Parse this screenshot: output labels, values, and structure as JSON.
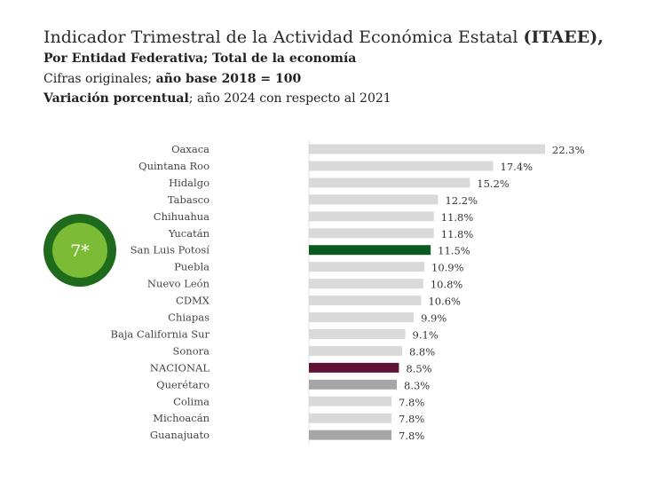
{
  "header": {
    "title": "Indicador Trimestral de la Actividad Económica Estatal",
    "title_bold": "(ITAEE),",
    "subtitle": "Por Entidad Federativa; Total de la economía",
    "note1_normal": "Cifras originales;",
    "note1_bold": "año base 2018 = 100",
    "note2_bold": "Variación porcentual",
    "note2_normal": "; año 2024 con respecto al 2021"
  },
  "badge": {
    "text": "7*",
    "outer_color": "#1e6b1e",
    "inner_color": "#7bbb35"
  },
  "chart_data": {
    "type": "bar",
    "orientation": "horizontal",
    "categories": [
      "Oaxaca",
      "Quintana Roo",
      "Hidalgo",
      "Tabasco",
      "Chihuahua",
      "Yucatán",
      "San Luis Potosí",
      "Puebla",
      "Nuevo León",
      "CDMX",
      "Chiapas",
      "Baja California Sur",
      "Sonora",
      "NACIONAL",
      "Querétaro",
      "Colima",
      "Michoacán",
      "Guanajuato"
    ],
    "values": [
      22.3,
      17.4,
      15.2,
      12.2,
      11.8,
      11.8,
      11.5,
      10.9,
      10.8,
      10.6,
      9.9,
      9.1,
      8.8,
      8.5,
      8.3,
      7.8,
      7.8,
      7.8
    ],
    "labels": [
      "22.3%",
      "17.4%",
      "15.2%",
      "12.2%",
      "11.8%",
      "11.8%",
      "11.5%",
      "10.9%",
      "10.8%",
      "10.6%",
      "9.9%",
      "9.1%",
      "8.8%",
      "8.5%",
      "8.3%",
      "7.8%",
      "7.8%",
      "7.8%"
    ],
    "colors": [
      "#d9d9d9",
      "#d9d9d9",
      "#d9d9d9",
      "#d9d9d9",
      "#d9d9d9",
      "#d9d9d9",
      "#0b5a23",
      "#d9d9d9",
      "#d9d9d9",
      "#d9d9d9",
      "#d9d9d9",
      "#d9d9d9",
      "#d9d9d9",
      "#5e1234",
      "#a6a6a6",
      "#d9d9d9",
      "#d9d9d9",
      "#a6a6a6"
    ],
    "xlim": [
      0,
      22.3
    ],
    "grid": false
  }
}
